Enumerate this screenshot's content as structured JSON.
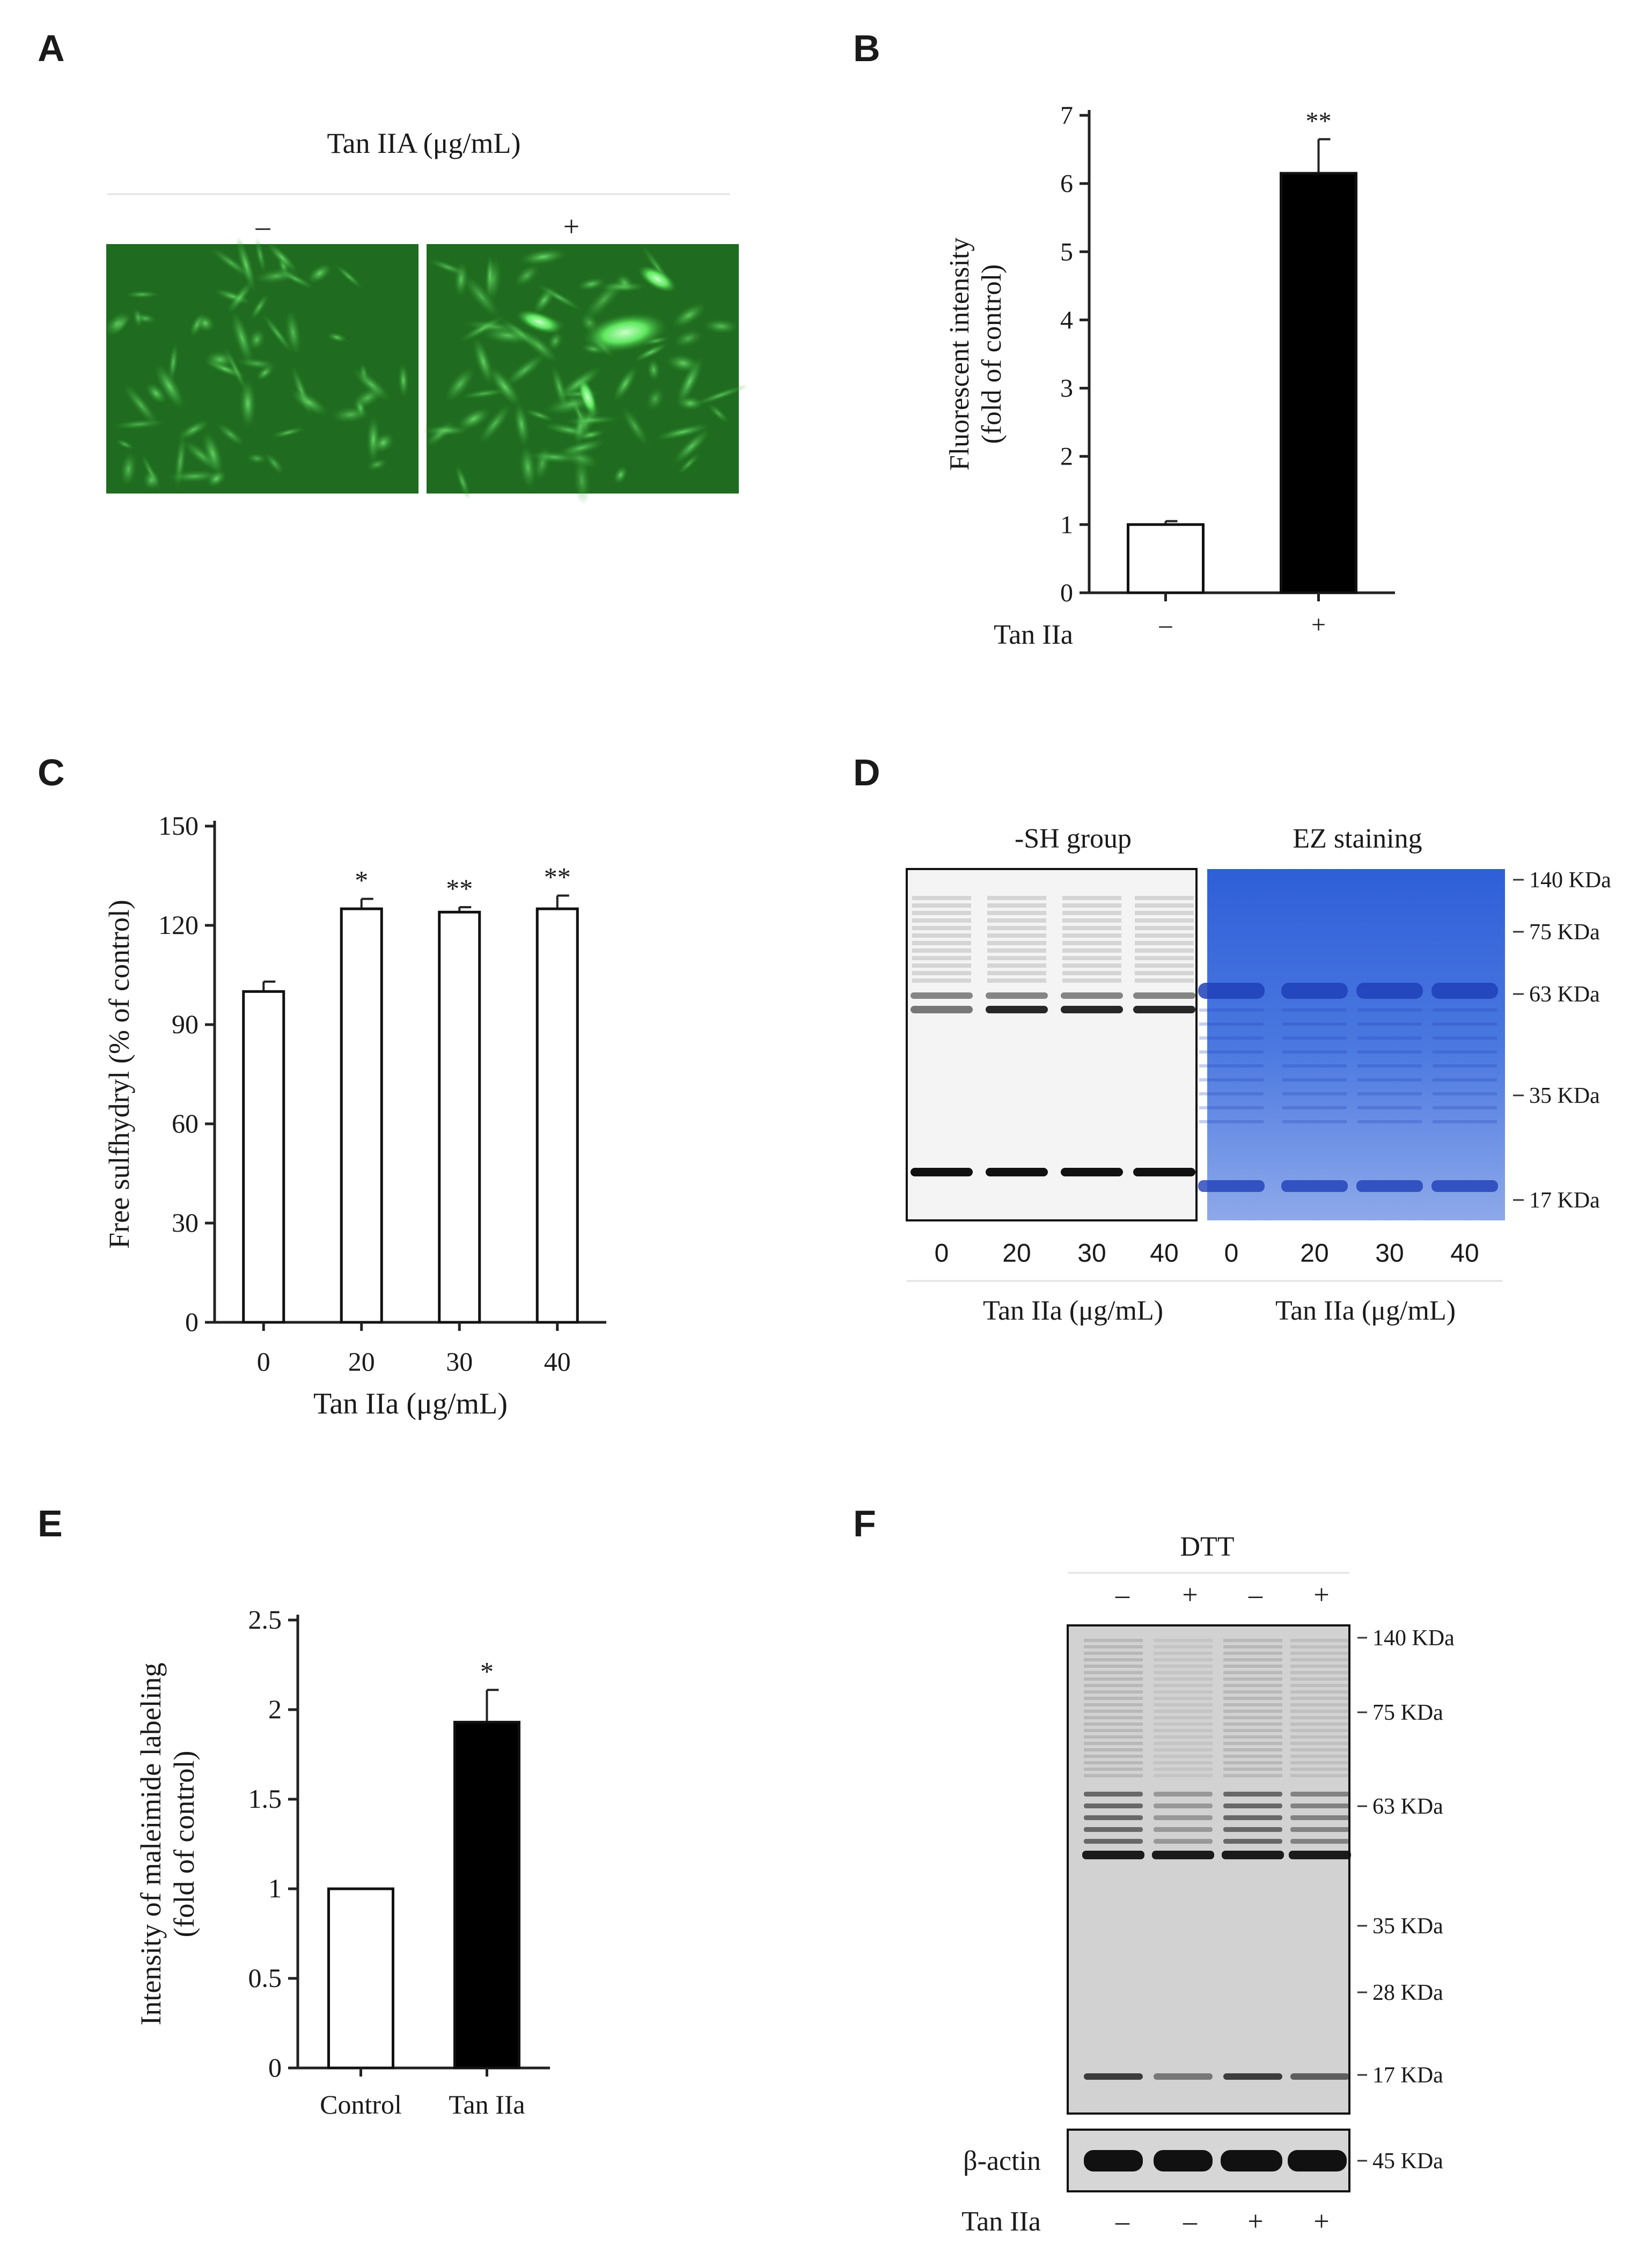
{
  "panels": {
    "a": {
      "letter": "A",
      "header": "Tan IIA (μg/mL)",
      "conditions": [
        "–",
        "+"
      ],
      "fluorescence_colors": {
        "background": "#1f6b1f",
        "cells": "#3fbf3f",
        "bright": "#7cff7c"
      }
    },
    "b": {
      "letter": "B"
    },
    "c": {
      "letter": "C"
    },
    "d": {
      "letter": "D",
      "blot_titles": [
        "-SH group",
        "EZ staining"
      ],
      "lanes": [
        "0",
        "20",
        "30",
        "40"
      ],
      "footer": "Tan IIa (μg/mL)",
      "markers": [
        "140 KDa",
        "75 KDa",
        "63 KDa",
        "35 KDa",
        "17 KDa"
      ],
      "stain_color": "#2f5fd8"
    },
    "e": {
      "letter": "E"
    },
    "f": {
      "letter": "F",
      "header": "DTT",
      "dtt": [
        "–",
        "+",
        "–",
        "+"
      ],
      "tan_label": "Tan IIa",
      "tan": [
        "–",
        "–",
        "+",
        "+"
      ],
      "actin_label": "β-actin",
      "markers": [
        "140 KDa",
        "75 KDa",
        "63 KDa",
        "35 KDa",
        "28 KDa",
        "17 KDa"
      ],
      "actin_marker": "45 KDa"
    }
  },
  "chart_data": [
    {
      "panel": "B",
      "type": "bar",
      "categories": [
        "–",
        "+"
      ],
      "category_axis_label": "Tan IIa",
      "values": [
        1.0,
        6.15
      ],
      "errors": [
        0.05,
        0.5
      ],
      "significance": [
        "",
        "**"
      ],
      "bar_colors": [
        "#ffffff",
        "#000000"
      ],
      "ylabel": [
        "Fluorescent intensity",
        "(fold of control)"
      ],
      "yticks": [
        "0",
        "1",
        "2",
        "3",
        "4",
        "5",
        "6",
        "7"
      ],
      "ylim": [
        0,
        7
      ]
    },
    {
      "panel": "C",
      "type": "bar",
      "categories": [
        "0",
        "20",
        "30",
        "40"
      ],
      "values": [
        100,
        125,
        124,
        125
      ],
      "errors": [
        3,
        3,
        1.5,
        4
      ],
      "significance": [
        "",
        "*",
        "**",
        "**"
      ],
      "bar_colors": [
        "#ffffff",
        "#ffffff",
        "#ffffff",
        "#ffffff"
      ],
      "xlabel": "Tan IIa  (μg/mL)",
      "ylabel": [
        "Free sulfhydryl  (% of control)"
      ],
      "yticks": [
        "0",
        "30",
        "60",
        "90",
        "120",
        "150"
      ],
      "ylim": [
        0,
        150
      ]
    },
    {
      "panel": "E",
      "type": "bar",
      "categories": [
        "Control",
        "Tan IIa"
      ],
      "values": [
        1.0,
        1.93
      ],
      "errors": [
        0,
        0.18
      ],
      "significance": [
        "",
        "*"
      ],
      "bar_colors": [
        "#ffffff",
        "#000000"
      ],
      "ylabel": [
        "Intensity of maleimide labeling",
        "(fold of control)"
      ],
      "yticks": [
        "0",
        "0.5",
        "1",
        "1.5",
        "2",
        "2.5"
      ],
      "ylim": [
        0,
        2.5
      ]
    }
  ]
}
